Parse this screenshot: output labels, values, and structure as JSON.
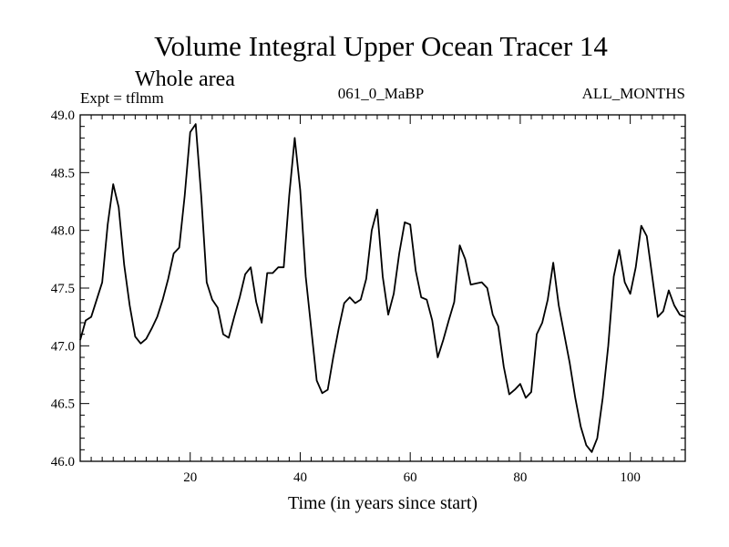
{
  "chart_data": {
    "type": "line",
    "title": "Volume Integral Upper Ocean Tracer 14",
    "subtitle": "Whole area",
    "annotations": {
      "left": "Expt = tflmm",
      "center": "061_0_MaBP",
      "right": "ALL_MONTHS"
    },
    "xlabel": "Time (in years since start)",
    "ylabel": "",
    "xlim": [
      0,
      110
    ],
    "ylim": [
      46.0,
      49.0
    ],
    "x_ticks": [
      20,
      40,
      60,
      80,
      100
    ],
    "y_ticks": [
      46.0,
      46.5,
      47.0,
      47.5,
      48.0,
      48.5,
      49.0
    ],
    "x_tick_labels": [
      "20",
      "40",
      "60",
      "80",
      "100"
    ],
    "y_tick_labels": [
      "46.0",
      "46.5",
      "47.0",
      "47.5",
      "48.0",
      "48.5",
      "49.0"
    ],
    "grid": false,
    "line_color": "#000000",
    "series": [
      {
        "name": "Tracer 14",
        "x": [
          0,
          1,
          2,
          3,
          4,
          5,
          6,
          7,
          8,
          9,
          10,
          11,
          12,
          13,
          14,
          15,
          16,
          17,
          18,
          19,
          20,
          21,
          22,
          23,
          24,
          25,
          26,
          27,
          28,
          29,
          30,
          31,
          32,
          33,
          34,
          35,
          36,
          37,
          38,
          39,
          40,
          41,
          42,
          43,
          44,
          45,
          46,
          47,
          48,
          49,
          50,
          51,
          52,
          53,
          54,
          55,
          56,
          57,
          58,
          59,
          60,
          61,
          62,
          63,
          64,
          65,
          66,
          67,
          68,
          69,
          70,
          71,
          72,
          73,
          74,
          75,
          76,
          77,
          78,
          79,
          80,
          81,
          82,
          83,
          84,
          85,
          86,
          87,
          88,
          89,
          90,
          91,
          92,
          93,
          94,
          95,
          96,
          97,
          98,
          99,
          100,
          101,
          102,
          103,
          104,
          105,
          106,
          107,
          108,
          109,
          110
        ],
        "values": [
          47.05,
          47.22,
          47.25,
          47.4,
          47.55,
          48.05,
          48.4,
          48.2,
          47.7,
          47.35,
          47.08,
          47.02,
          47.06,
          47.15,
          47.25,
          47.4,
          47.58,
          47.8,
          47.85,
          48.3,
          48.85,
          48.92,
          48.3,
          47.55,
          47.4,
          47.33,
          47.1,
          47.07,
          47.25,
          47.42,
          47.62,
          47.68,
          47.38,
          47.2,
          47.63,
          47.63,
          47.68,
          47.68,
          48.3,
          48.8,
          48.35,
          47.6,
          47.15,
          46.7,
          46.59,
          46.62,
          46.9,
          47.15,
          47.37,
          47.42,
          47.37,
          47.4,
          47.58,
          48.0,
          48.18,
          47.6,
          47.27,
          47.45,
          47.8,
          48.07,
          48.05,
          47.65,
          47.42,
          47.4,
          47.22,
          46.9,
          47.05,
          47.22,
          47.38,
          47.87,
          47.75,
          47.53,
          47.54,
          47.55,
          47.5,
          47.27,
          47.17,
          46.82,
          46.58,
          46.62,
          46.67,
          46.55,
          46.6,
          47.1,
          47.2,
          47.4,
          47.72,
          47.35,
          47.1,
          46.85,
          46.55,
          46.3,
          46.14,
          46.08,
          46.2,
          46.55,
          47.0,
          47.6,
          47.83,
          47.55,
          47.45,
          47.68,
          48.04,
          47.95,
          47.6,
          47.25,
          47.3,
          47.48,
          47.35,
          47.27,
          47.25
        ]
      }
    ]
  }
}
